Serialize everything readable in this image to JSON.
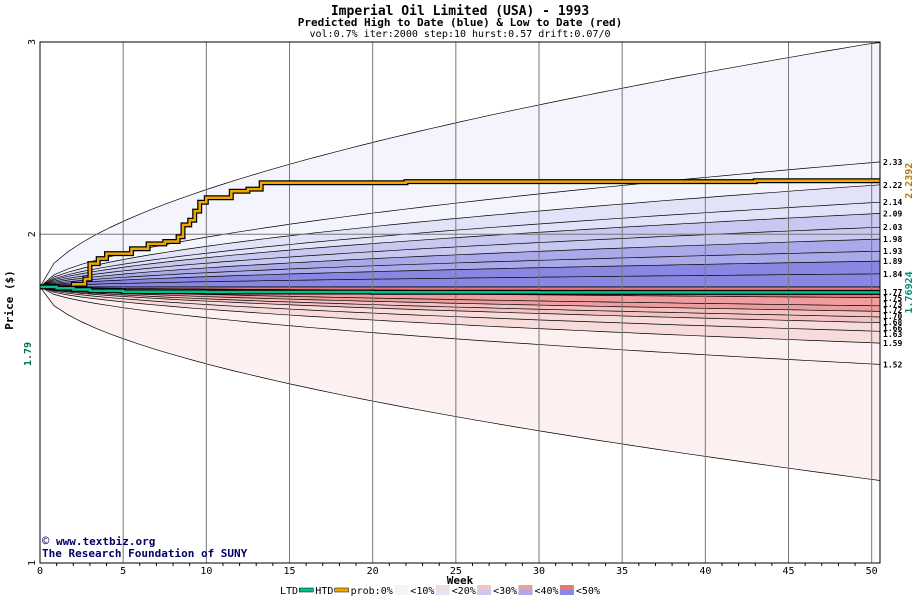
{
  "chart_data": {
    "type": "area",
    "title": "Imperial Oil Limited (USA) - 1993",
    "subtitle": "Predicted High to Date (blue) &  Low to Date (red)",
    "params": "vol:0.7% iter:2000 step:10 hurst:0.57 drift:0.07/0",
    "xlabel": "Week",
    "ylabel": "Price ($)",
    "xlim": [
      0,
      50.5
    ],
    "ylim": [
      1,
      3
    ],
    "y_scale": "log",
    "x_ticks": [
      0,
      5,
      10,
      15,
      20,
      25,
      30,
      35,
      40,
      45,
      50
    ],
    "y_ticks": [
      1,
      2,
      3
    ],
    "grid": true,
    "start_price": 1.79,
    "start_label": "1.79",
    "high_band_edges_at_end": [
      3.0,
      2.33,
      2.22,
      2.14,
      2.09,
      2.03,
      1.98,
      1.93,
      1.89,
      1.84,
      1.79
    ],
    "low_band_edges_at_end": [
      1.79,
      1.77,
      1.75,
      1.72,
      1.7,
      1.68,
      1.66,
      1.63,
      1.59,
      1.52,
      1.19
    ],
    "end_labels": [
      "2.33",
      "2.22",
      "2.14",
      "2.09",
      "2.03",
      "1.98",
      "1.93",
      "1.89",
      "1.84",
      "1.77",
      "1.75",
      "1.73",
      "1.72",
      "1.70",
      "1.68",
      "1.66",
      "1.63",
      "1.59",
      "1.52"
    ],
    "series": [
      {
        "name": "HTD",
        "color": "#f0a800",
        "x": [
          0,
          1,
          2,
          2.7,
          3,
          3.5,
          4,
          5,
          5.5,
          6,
          6.5,
          7,
          7.5,
          8,
          8.3,
          8.6,
          9,
          9.3,
          9.6,
          10,
          10.5,
          11,
          11.5,
          12,
          12.5,
          13,
          13.3,
          14,
          20,
          22,
          30,
          40,
          42.5,
          43,
          50.5
        ],
        "values": [
          1.79,
          1.79,
          1.8,
          1.82,
          1.88,
          1.9,
          1.92,
          1.92,
          1.94,
          1.94,
          1.96,
          1.96,
          1.97,
          1.97,
          1.99,
          2.04,
          2.06,
          2.1,
          2.14,
          2.16,
          2.16,
          2.16,
          2.19,
          2.19,
          2.2,
          2.2,
          2.23,
          2.23,
          2.23,
          2.235,
          2.235,
          2.235,
          2.235,
          2.2392,
          2.2392
        ]
      },
      {
        "name": "LTD",
        "color": "#00c090",
        "x": [
          0,
          1,
          2,
          3,
          5,
          10,
          20,
          30,
          40,
          50.5
        ],
        "values": [
          1.79,
          1.785,
          1.78,
          1.775,
          1.772,
          1.771,
          1.77,
          1.7695,
          1.7693,
          1.76924
        ]
      }
    ],
    "right_labels": [
      {
        "text": "2.2392",
        "value": 2.2392,
        "color": "#b08000"
      },
      {
        "text": "1.76924",
        "value": 1.76924,
        "color": "#009070"
      }
    ],
    "credits": [
      "www.textbiz.org",
      "The Research Foundation of SUNY"
    ],
    "legend": {
      "ltd": "LTD",
      "htd": "HTD",
      "prob_items": [
        "prob:0%",
        "<10%",
        "<20%",
        "<30%",
        "<40%",
        "<50%"
      ],
      "colors": {
        "ltd": "#00c090",
        "htd": "#f0a800",
        "blue": [
          "#f4f4fc",
          "#e2e2f8",
          "#c8c8f0",
          "#aaaaea",
          "#8888e2"
        ],
        "red": [
          "#fcf0f0",
          "#f8dcdc",
          "#f4c2c2",
          "#ee9e9e",
          "#e87878"
        ]
      }
    }
  }
}
